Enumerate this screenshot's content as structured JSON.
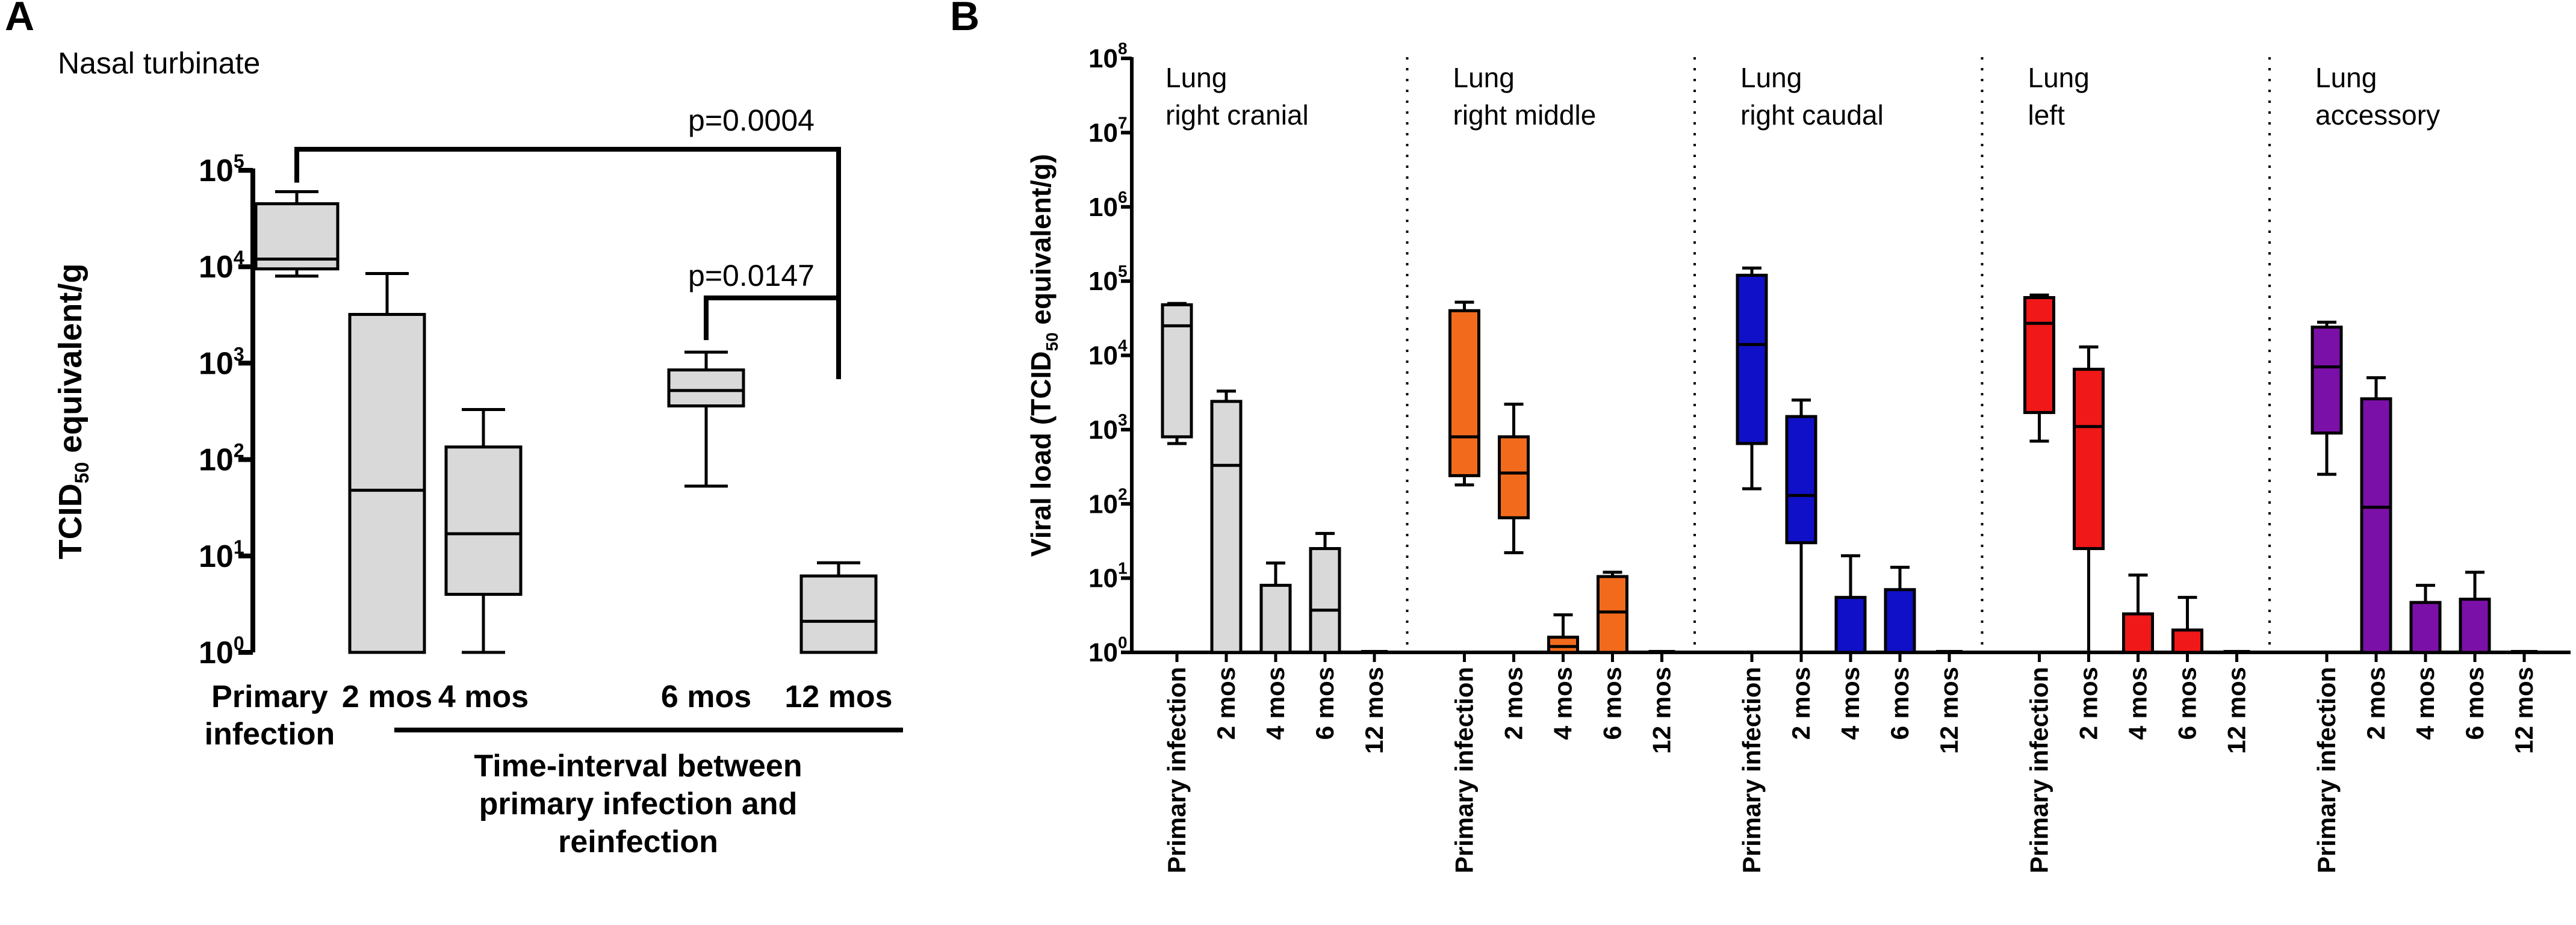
{
  "chart_data": [
    {
      "type": "box",
      "panel": "A",
      "subtitle": "Nasal turbinate",
      "ylabel_main": "TCID",
      "ylabel_sub": "50",
      "ylabel_rest": " equivalent/g",
      "yscale": "log",
      "ylim": [
        1,
        100000
      ],
      "yticks": [
        {
          "base": "10",
          "exp": "0",
          "value": 1
        },
        {
          "base": "10",
          "exp": "1",
          "value": 10
        },
        {
          "base": "10",
          "exp": "2",
          "value": 100
        },
        {
          "base": "10",
          "exp": "3",
          "value": 1000
        },
        {
          "base": "10",
          "exp": "4",
          "value": 10000
        },
        {
          "base": "10",
          "exp": "5",
          "value": 100000
        }
      ],
      "categories": [
        "Primary infection",
        "2 mos",
        "4 mos",
        "6 mos",
        "12 mos"
      ],
      "category_lines": [
        [
          "Primary",
          "infection"
        ],
        [
          "2 mos"
        ],
        [
          "4 mos"
        ],
        [
          "6 mos"
        ],
        [
          "12 mos"
        ]
      ],
      "boxes": [
        {
          "min": 8000,
          "q1": 9500,
          "median": 12000,
          "q3": 45000,
          "max": 60000
        },
        {
          "min": 1,
          "q1": 1,
          "median": 48,
          "q3": 3200,
          "max": 8500
        },
        {
          "min": 1,
          "q1": 4,
          "median": 17,
          "q3": 135,
          "max": 330
        },
        {
          "min": 53,
          "q1": 360,
          "median": 520,
          "q3": 850,
          "max": 1300
        },
        {
          "min": 1,
          "q1": 1,
          "median": 2.1,
          "q3": 6.2,
          "max": 8.5
        }
      ],
      "box_color": "#d9d9d9",
      "xgroup_label": [
        "Time-interval between",
        "primary infection and",
        "reinfection"
      ],
      "annotations": [
        {
          "text": "p=0.0004",
          "from": 0,
          "to": 4
        },
        {
          "text": "p=0.0147",
          "from": 3,
          "to": 4
        }
      ]
    },
    {
      "type": "box",
      "panel": "B",
      "ylabel_main": "Viral load (TCID",
      "ylabel_sub": "50",
      "ylabel_rest": " equivalent/g)",
      "yscale": "log",
      "ylim": [
        1,
        100000000
      ],
      "yticks": [
        {
          "base": "10",
          "exp": "0",
          "value": 1
        },
        {
          "base": "10",
          "exp": "1",
          "value": 10
        },
        {
          "base": "10",
          "exp": "2",
          "value": 100
        },
        {
          "base": "10",
          "exp": "3",
          "value": 1000
        },
        {
          "base": "10",
          "exp": "4",
          "value": 10000
        },
        {
          "base": "10",
          "exp": "5",
          "value": 100000
        },
        {
          "base": "10",
          "exp": "6",
          "value": 1000000
        },
        {
          "base": "10",
          "exp": "7",
          "value": 10000000
        },
        {
          "base": "10",
          "exp": "8",
          "value": 100000000
        }
      ],
      "categories": [
        "Primary infection",
        "2 mos",
        "4 mos",
        "6 mos",
        "12 mos"
      ],
      "groups": [
        {
          "title": [
            "Lung",
            "right cranial"
          ],
          "color": "#d9d9d9",
          "boxes": [
            {
              "min": 650,
              "q1": 800,
              "median": 25000,
              "q3": 48000,
              "max": 50000
            },
            {
              "min": 1,
              "q1": 1,
              "median": 330,
              "q3": 2400,
              "max": 3300
            },
            {
              "min": 1,
              "q1": 1,
              "median": 1,
              "q3": 8,
              "max": 16
            },
            {
              "min": 1,
              "q1": 1,
              "median": 3.7,
              "q3": 25,
              "max": 40
            },
            {
              "min": 1,
              "q1": 1,
              "median": 1,
              "q3": 1,
              "max": 1
            }
          ]
        },
        {
          "title": [
            "Lung",
            "right middle"
          ],
          "color": "#f26b1d",
          "boxes": [
            {
              "min": 180,
              "q1": 240,
              "median": 800,
              "q3": 40000,
              "max": 52000
            },
            {
              "min": 22,
              "q1": 65,
              "median": 260,
              "q3": 800,
              "max": 2200
            },
            {
              "min": 1,
              "q1": 1,
              "median": 1.2,
              "q3": 1.6,
              "max": 3.2
            },
            {
              "min": 1,
              "q1": 1,
              "median": 3.5,
              "q3": 10.5,
              "max": 12
            },
            {
              "min": 1,
              "q1": 1,
              "median": 1,
              "q3": 1,
              "max": 1
            }
          ]
        },
        {
          "title": [
            "Lung",
            "right caudal"
          ],
          "color": "#1010c8",
          "boxes": [
            {
              "min": 160,
              "q1": 650,
              "median": 14000,
              "q3": 120000,
              "max": 150000
            },
            {
              "min": 1,
              "q1": 30,
              "median": 130,
              "q3": 1500,
              "max": 2500
            },
            {
              "min": 1,
              "q1": 1,
              "median": 1,
              "q3": 5.5,
              "max": 20
            },
            {
              "min": 1,
              "q1": 1,
              "median": 1,
              "q3": 7,
              "max": 14
            },
            {
              "min": 1,
              "q1": 1,
              "median": 1,
              "q3": 1,
              "max": 1
            }
          ]
        },
        {
          "title": [
            "Lung",
            "left"
          ],
          "color": "#f01818",
          "boxes": [
            {
              "min": 700,
              "q1": 1700,
              "median": 27000,
              "q3": 60000,
              "max": 65000
            },
            {
              "min": 1,
              "q1": 25,
              "median": 1100,
              "q3": 6500,
              "max": 13000
            },
            {
              "min": 1,
              "q1": 1,
              "median": 1,
              "q3": 3.3,
              "max": 11
            },
            {
              "min": 1,
              "q1": 1,
              "median": 1,
              "q3": 2,
              "max": 5.5
            },
            {
              "min": 1,
              "q1": 1,
              "median": 1,
              "q3": 1,
              "max": 1
            }
          ]
        },
        {
          "title": [
            "Lung",
            "accessory"
          ],
          "color": "#7b10a8",
          "boxes": [
            {
              "min": 250,
              "q1": 900,
              "median": 7000,
              "q3": 24000,
              "max": 28000
            },
            {
              "min": 1,
              "q1": 1,
              "median": 90,
              "q3": 2600,
              "max": 5000
            },
            {
              "min": 1,
              "q1": 1,
              "median": 1,
              "q3": 4.7,
              "max": 8
            },
            {
              "min": 1,
              "q1": 1,
              "median": 1,
              "q3": 5.2,
              "max": 12
            },
            {
              "min": 1,
              "q1": 1,
              "median": 1,
              "q3": 1,
              "max": 1
            }
          ]
        }
      ]
    }
  ]
}
